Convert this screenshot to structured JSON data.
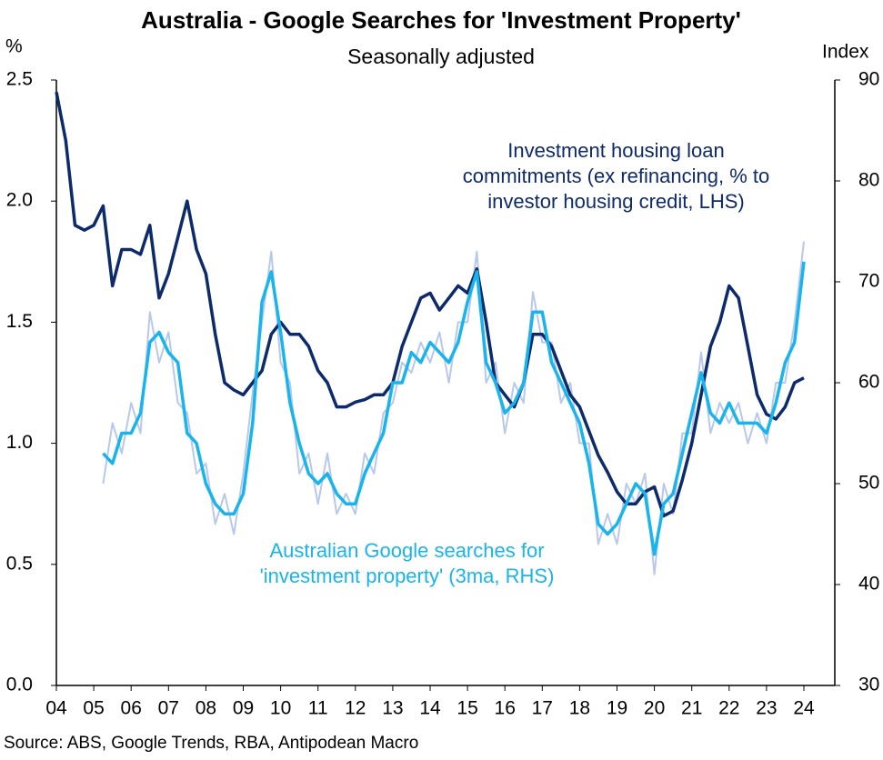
{
  "chart_data": {
    "type": "line",
    "title": "Australia - Google Searches for 'Investment Property'",
    "subtitle": "Seasonally adjusted",
    "y_label": "%",
    "y2_label": "Index",
    "source": "Source: ABS, Google Trends, RBA, Antipodean Macro",
    "x": [
      2004,
      2004.25,
      2004.5,
      2004.75,
      2005,
      2005.25,
      2005.5,
      2005.75,
      2006,
      2006.25,
      2006.5,
      2006.75,
      2007,
      2007.25,
      2007.5,
      2007.75,
      2008,
      2008.25,
      2008.5,
      2008.75,
      2009,
      2009.25,
      2009.5,
      2009.75,
      2010,
      2010.25,
      2010.5,
      2010.75,
      2011,
      2011.25,
      2011.5,
      2011.75,
      2012,
      2012.25,
      2012.5,
      2012.75,
      2013,
      2013.25,
      2013.5,
      2013.75,
      2014,
      2014.25,
      2014.5,
      2014.75,
      2015,
      2015.25,
      2015.5,
      2015.75,
      2016,
      2016.25,
      2016.5,
      2016.75,
      2017,
      2017.25,
      2017.5,
      2017.75,
      2018,
      2018.25,
      2018.5,
      2018.75,
      2019,
      2019.25,
      2019.5,
      2019.75,
      2020,
      2020.25,
      2020.5,
      2020.75,
      2021,
      2021.25,
      2021.5,
      2021.75,
      2022,
      2022.25,
      2022.5,
      2022.75,
      2023,
      2023.25,
      2023.5,
      2023.75,
      2024
    ],
    "xlim": [
      2004,
      2024
    ],
    "xticks": [
      {
        "value": 2004,
        "label": "04"
      },
      {
        "value": 2005,
        "label": "05"
      },
      {
        "value": 2006,
        "label": "06"
      },
      {
        "value": 2007,
        "label": "07"
      },
      {
        "value": 2008,
        "label": "08"
      },
      {
        "value": 2009,
        "label": "09"
      },
      {
        "value": 2010,
        "label": "10"
      },
      {
        "value": 2011,
        "label": "11"
      },
      {
        "value": 2012,
        "label": "12"
      },
      {
        "value": 2013,
        "label": "13"
      },
      {
        "value": 2014,
        "label": "14"
      },
      {
        "value": 2015,
        "label": "15"
      },
      {
        "value": 2016,
        "label": "16"
      },
      {
        "value": 2017,
        "label": "17"
      },
      {
        "value": 2018,
        "label": "18"
      },
      {
        "value": 2019,
        "label": "19"
      },
      {
        "value": 2020,
        "label": "20"
      },
      {
        "value": 2021,
        "label": "21"
      },
      {
        "value": 2022,
        "label": "22"
      },
      {
        "value": 2023,
        "label": "23"
      },
      {
        "value": 2024,
        "label": "24"
      }
    ],
    "ylim": [
      0,
      2.5
    ],
    "yticks": [
      {
        "value": 0,
        "label": "0.0"
      },
      0.5,
      {
        "value": 1,
        "label": "1.0"
      },
      1.5,
      {
        "value": 2,
        "label": "2.0"
      },
      2.5
    ],
    "y2lim": [
      30,
      90
    ],
    "y2ticks": [
      30,
      40,
      50,
      60,
      70,
      80,
      90
    ],
    "grid": false,
    "series": [
      {
        "color": "#b8c8ea",
        "axis": "y2",
        "values": [
          null,
          null,
          null,
          null,
          null,
          50,
          56,
          53,
          58,
          55,
          67,
          62,
          65,
          58,
          57,
          51,
          52,
          46,
          49,
          45,
          51,
          59,
          66,
          73,
          62,
          60,
          51,
          53,
          48,
          53,
          47,
          49,
          47,
          53,
          51,
          57,
          58,
          62,
          61,
          64,
          62,
          65,
          60,
          66,
          66,
          73,
          60,
          62,
          55,
          60,
          58,
          69,
          64,
          64,
          58,
          60,
          54,
          54,
          44,
          47,
          44,
          50,
          48,
          51,
          41,
          50,
          47,
          55,
          55,
          63,
          55,
          58,
          56,
          58,
          54,
          57,
          54,
          60,
          60,
          66,
          74
        ]
      },
      {
        "name": "Investment housing loan commitments (ex refinancing, % to investor housing credit, LHS)",
        "color": "#0d2a6b",
        "values": [
          2.45,
          2.25,
          1.9,
          1.88,
          1.9,
          1.98,
          1.65,
          1.8,
          1.8,
          1.78,
          1.9,
          1.6,
          1.7,
          1.85,
          2.0,
          1.8,
          1.7,
          1.45,
          1.25,
          1.22,
          1.2,
          1.25,
          1.3,
          1.45,
          1.5,
          1.45,
          1.45,
          1.4,
          1.3,
          1.25,
          1.15,
          1.15,
          1.17,
          1.18,
          1.2,
          1.2,
          1.25,
          1.4,
          1.5,
          1.6,
          1.62,
          1.55,
          1.6,
          1.65,
          1.62,
          1.72,
          1.5,
          1.25,
          1.2,
          1.15,
          1.25,
          1.45,
          1.45,
          1.4,
          1.3,
          1.2,
          1.15,
          1.05,
          0.95,
          0.88,
          0.8,
          0.75,
          0.75,
          0.8,
          0.82,
          0.7,
          0.72,
          0.85,
          1.0,
          1.2,
          1.4,
          1.5,
          1.65,
          1.6,
          1.4,
          1.2,
          1.12,
          1.1,
          1.15,
          1.25,
          1.27
        ]
      },
      {
        "name": "Australian Google searches for 'investment property' (3ma, RHS)",
        "color": "#19b4ec",
        "axis": "y2",
        "values": [
          null,
          null,
          null,
          null,
          null,
          53,
          52,
          55,
          55,
          57,
          64,
          65,
          63,
          62,
          55,
          54,
          50,
          48,
          47,
          47,
          49,
          56,
          68,
          71,
          65,
          58,
          54,
          51,
          50,
          51,
          49,
          48,
          48,
          51,
          53,
          55,
          60,
          60,
          63,
          62,
          64,
          63,
          62,
          64,
          68,
          71,
          62,
          60,
          57,
          58,
          60,
          67,
          67,
          62,
          60,
          58,
          56,
          52,
          46,
          45,
          46,
          48,
          50,
          49,
          43,
          48,
          49,
          53,
          57,
          61,
          57,
          56,
          58,
          56,
          56,
          56,
          55,
          58,
          62,
          64,
          72
        ]
      }
    ]
  }
}
